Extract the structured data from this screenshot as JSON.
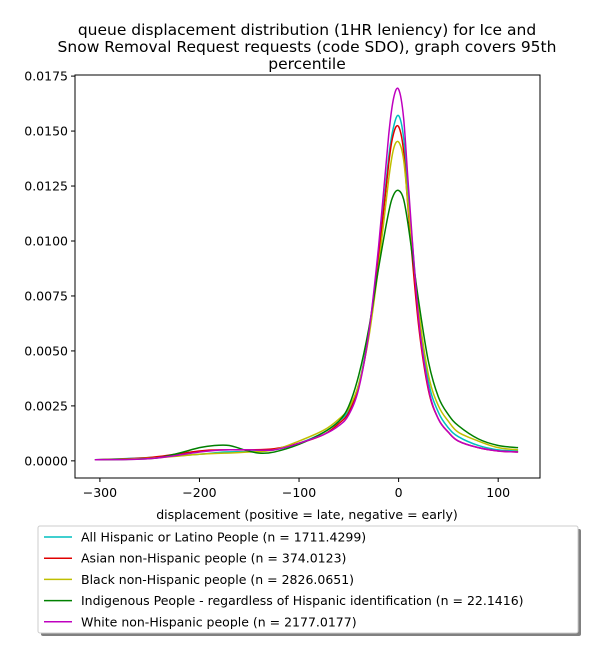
{
  "chart_data": {
    "type": "line",
    "title_lines": [
      "queue displacement distribution (1HR leniency) for Ice and",
      "Snow Removal Request  requests (code SDO), graph covers 95th",
      "percentile"
    ],
    "xlabel": "displacement (positive = late, negative = early)",
    "ylabel": "",
    "xlim": [
      -325,
      142
    ],
    "ylim": [
      -0.00078,
      0.01755
    ],
    "xticks": [
      -300,
      -200,
      -100,
      0,
      100
    ],
    "xtick_labels": [
      "−300",
      "−200",
      "−100",
      "0",
      "100"
    ],
    "yticks": [
      0.0,
      0.0025,
      0.005,
      0.0075,
      0.01,
      0.0125,
      0.015,
      0.0175
    ],
    "ytick_labels": [
      "0.0000",
      "0.0025",
      "0.0050",
      "0.0075",
      "0.0100",
      "0.0125",
      "0.0150",
      "0.0175"
    ],
    "grid": false,
    "legend_position": "below",
    "series": [
      {
        "name": "All Hispanic or Latino People (n = 1711.4299)",
        "color": "#00bfbf",
        "x": [
          -305,
          -250,
          -200,
          -175,
          -150,
          -125,
          -100,
          -75,
          -60,
          -50,
          -40,
          -30,
          -20,
          -10,
          -5,
          0,
          5,
          10,
          20,
          30,
          40,
          50,
          60,
          80,
          100,
          120
        ],
        "y": [
          5e-05,
          0.00015,
          0.0003,
          0.0004,
          0.00042,
          0.0005,
          0.0008,
          0.0013,
          0.0018,
          0.0023,
          0.0035,
          0.0058,
          0.0095,
          0.0138,
          0.0152,
          0.0157,
          0.0147,
          0.012,
          0.0068,
          0.0036,
          0.0022,
          0.0015,
          0.0011,
          0.0007,
          0.0005,
          0.00045
        ]
      },
      {
        "name": "Asian non-Hispanic people (n = 374.0123)",
        "color": "#e00000",
        "x": [
          -305,
          -250,
          -200,
          -175,
          -150,
          -125,
          -100,
          -75,
          -60,
          -50,
          -40,
          -30,
          -20,
          -10,
          -5,
          0,
          5,
          10,
          20,
          30,
          40,
          50,
          60,
          80,
          100,
          120
        ],
        "y": [
          5e-05,
          0.00015,
          0.00045,
          0.0005,
          0.0005,
          0.00055,
          0.0008,
          0.0012,
          0.0017,
          0.0022,
          0.0034,
          0.0057,
          0.0093,
          0.0135,
          0.0149,
          0.0152,
          0.0141,
          0.0112,
          0.0062,
          0.0032,
          0.0019,
          0.0013,
          0.0009,
          0.0006,
          0.00045,
          0.0004
        ]
      },
      {
        "name": "Black non-Hispanic people (n = 2826.0651)",
        "color": "#bfbf00",
        "x": [
          -305,
          -250,
          -200,
          -175,
          -150,
          -125,
          -100,
          -75,
          -60,
          -50,
          -40,
          -30,
          -20,
          -10,
          -5,
          0,
          5,
          10,
          20,
          30,
          40,
          50,
          60,
          80,
          100,
          120
        ],
        "y": [
          5e-05,
          0.00012,
          0.0003,
          0.00035,
          0.0004,
          0.0005,
          0.0009,
          0.0014,
          0.0019,
          0.0024,
          0.0035,
          0.0056,
          0.0089,
          0.0128,
          0.0142,
          0.0145,
          0.0137,
          0.0114,
          0.0069,
          0.0039,
          0.0025,
          0.0018,
          0.0013,
          0.0009,
          0.0006,
          0.0005
        ]
      },
      {
        "name": "Indigenous People - regardless of Hispanic identification (n = 22.1416)",
        "color": "#008000",
        "x": [
          -305,
          -250,
          -225,
          -200,
          -185,
          -170,
          -155,
          -140,
          -125,
          -100,
          -75,
          -60,
          -50,
          -40,
          -30,
          -20,
          -10,
          -5,
          0,
          5,
          10,
          20,
          30,
          40,
          50,
          60,
          80,
          100,
          120
        ],
        "y": [
          5e-05,
          0.0001,
          0.0003,
          0.0006,
          0.0007,
          0.0007,
          0.0005,
          0.00035,
          0.0004,
          0.00075,
          0.0013,
          0.0018,
          0.0025,
          0.0039,
          0.006,
          0.0088,
          0.0113,
          0.0121,
          0.0123,
          0.0119,
          0.0106,
          0.0073,
          0.0045,
          0.0029,
          0.0021,
          0.0016,
          0.001,
          0.0007,
          0.0006
        ]
      },
      {
        "name": "White non-Hispanic people (n = 2177.0177)",
        "color": "#bf00bf",
        "x": [
          -305,
          -250,
          -200,
          -175,
          -150,
          -125,
          -100,
          -75,
          -60,
          -50,
          -40,
          -30,
          -20,
          -10,
          -5,
          0,
          5,
          10,
          20,
          30,
          40,
          50,
          60,
          80,
          100,
          120
        ],
        "y": [
          5e-05,
          0.0001,
          0.0004,
          0.0005,
          0.0005,
          0.0005,
          0.0008,
          0.0012,
          0.0016,
          0.0021,
          0.0033,
          0.0058,
          0.0098,
          0.0148,
          0.0165,
          0.0169,
          0.0156,
          0.0124,
          0.0065,
          0.0033,
          0.0019,
          0.0013,
          0.0009,
          0.0006,
          0.00045,
          0.0004
        ]
      }
    ]
  }
}
